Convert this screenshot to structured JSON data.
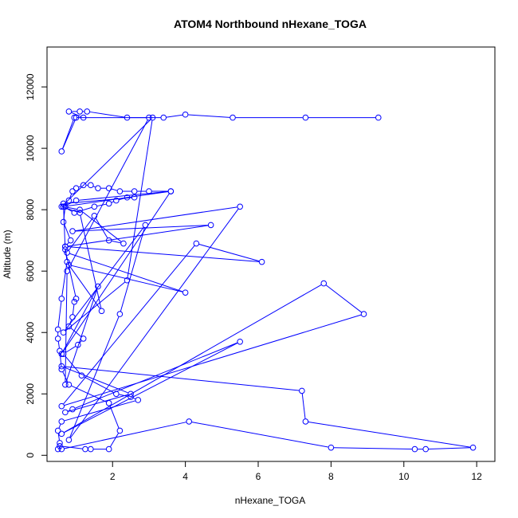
{
  "chart_data": {
    "type": "line",
    "title": "ATOM4 Northbound nHexane_TOGA",
    "xlabel": "nHexane_TOGA",
    "ylabel": "Altitude (m)",
    "xlim": [
      0.2,
      12.5
    ],
    "ylim": [
      -200,
      13300
    ],
    "xticks": [
      2,
      4,
      6,
      8,
      10,
      12
    ],
    "yticks": [
      0,
      2000,
      4000,
      6000,
      8000,
      10000,
      12000
    ],
    "grid": false,
    "line_color": "#0000ff",
    "marker": "open-circle",
    "series": [
      {
        "points": [
          [
            0.5,
            200
          ],
          [
            0.55,
            300
          ],
          [
            1.25,
            200
          ],
          [
            1.4,
            200
          ],
          [
            1.9,
            200
          ],
          [
            2.2,
            800
          ],
          [
            1.9,
            1700
          ],
          [
            0.8,
            2300
          ],
          [
            0.6,
            2800
          ],
          [
            0.55,
            3400
          ],
          [
            0.5,
            3800
          ],
          [
            0.5,
            4100
          ],
          [
            0.6,
            5100
          ],
          [
            0.75,
            6300
          ],
          [
            0.7,
            6800
          ],
          [
            0.85,
            7000
          ],
          [
            0.65,
            7600
          ],
          [
            0.7,
            8100
          ],
          [
            0.8,
            8300
          ],
          [
            0.9,
            8600
          ],
          [
            1.0,
            8700
          ],
          [
            1.2,
            8800
          ],
          [
            1.4,
            8800
          ],
          [
            1.6,
            8700
          ],
          [
            1.9,
            8700
          ],
          [
            2.2,
            8600
          ],
          [
            2.6,
            8600
          ],
          [
            3.0,
            8600
          ],
          [
            3.6,
            8600
          ],
          [
            0.65,
            8100
          ],
          [
            0.95,
            7900
          ],
          [
            1.5,
            8100
          ],
          [
            1.9,
            8200
          ],
          [
            2.1,
            8300
          ],
          [
            2.4,
            8400
          ],
          [
            2.6,
            8400
          ],
          [
            0.65,
            8200
          ],
          [
            0.7,
            6700
          ],
          [
            1.0,
            5100
          ],
          [
            0.95,
            5000
          ],
          [
            0.9,
            4500
          ],
          [
            0.8,
            4200
          ],
          [
            1.2,
            3800
          ],
          [
            1.05,
            3600
          ],
          [
            0.65,
            3300
          ],
          [
            1.15,
            2600
          ],
          [
            2.1,
            2000
          ],
          [
            2.5,
            1900
          ],
          [
            2.7,
            1800
          ],
          [
            0.6,
            1100
          ],
          [
            0.5,
            800
          ],
          [
            0.55,
            400
          ],
          [
            0.6,
            200
          ],
          [
            4.1,
            1100
          ],
          [
            8.0,
            250
          ],
          [
            10.3,
            200
          ],
          [
            10.6,
            200
          ],
          [
            11.9,
            250
          ],
          [
            7.3,
            1100
          ],
          [
            7.2,
            2100
          ],
          [
            0.6,
            2900
          ],
          [
            2.5,
            2000
          ],
          [
            0.7,
            1400
          ],
          [
            0.9,
            1500
          ],
          [
            5.5,
            3700
          ],
          [
            0.6,
            700
          ],
          [
            7.8,
            5600
          ],
          [
            8.9,
            4600
          ],
          [
            0.6,
            1600
          ],
          [
            4.3,
            6900
          ],
          [
            6.1,
            6300
          ],
          [
            0.7,
            6800
          ],
          [
            4.7,
            7500
          ],
          [
            0.9,
            7300
          ],
          [
            5.5,
            8100
          ],
          [
            0.8,
            500
          ],
          [
            2.2,
            4600
          ],
          [
            2.9,
            7500
          ],
          [
            0.65,
            4000
          ],
          [
            2.4,
            5700
          ],
          [
            3.1,
            11000
          ],
          [
            0.6,
            8100
          ],
          [
            1.1,
            7900
          ],
          [
            1.7,
            4700
          ],
          [
            0.8,
            6200
          ],
          [
            4.0,
            5300
          ],
          [
            0.75,
            6600
          ],
          [
            1.5,
            7800
          ],
          [
            1.9,
            7000
          ],
          [
            2.3,
            6900
          ],
          [
            1.1,
            8000
          ],
          [
            0.65,
            8100
          ],
          [
            1.0,
            8300
          ],
          [
            3.6,
            8600
          ],
          [
            0.6,
            3300
          ],
          [
            1.6,
            5500
          ],
          [
            0.7,
            2300
          ],
          [
            0.75,
            6000
          ],
          [
            3.0,
            11000
          ],
          [
            0.95,
            11000
          ],
          [
            0.6,
            9900
          ],
          [
            1.0,
            11000
          ],
          [
            1.2,
            11000
          ],
          [
            0.8,
            11200
          ],
          [
            1.1,
            11200
          ],
          [
            1.3,
            11200
          ],
          [
            2.4,
            11000
          ],
          [
            3.4,
            11000
          ],
          [
            4.0,
            11100
          ],
          [
            5.3,
            11000
          ],
          [
            7.3,
            11000
          ],
          [
            9.3,
            11000
          ]
        ]
      }
    ]
  }
}
